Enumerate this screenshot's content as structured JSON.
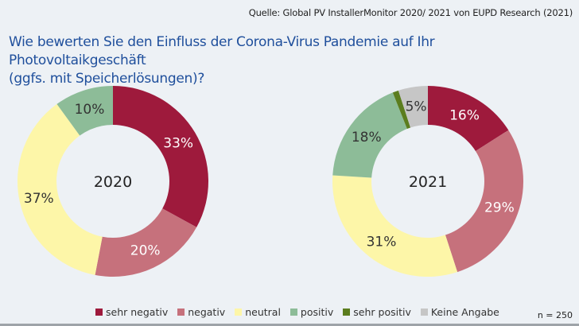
{
  "source": "Quelle: Global PV InstallerMonitor 2020/ 2021 von EUPD Research (2021)",
  "title_line1": "Wie bewerten Sie den Einfluss der Corona-Virus Pandemie auf Ihr Photovoltaikgeschäft",
  "title_line2": "(ggfs. mit Speicherlösungen)?",
  "sample_size": "n = 250",
  "chart_data": [
    {
      "type": "pie",
      "donut": true,
      "center_label": "2020",
      "categories": [
        "sehr negativ",
        "negativ",
        "neutral",
        "positiv"
      ],
      "values": [
        33,
        20,
        37,
        10
      ],
      "labels": [
        "33%",
        "20%",
        "37%",
        "10%"
      ],
      "colors": [
        "#9e1a3c",
        "#c6717c",
        "#fdf6a8",
        "#8dbc98"
      ],
      "label_colors": [
        "#ffffff",
        "#ffffff",
        "#333333",
        "#333333"
      ]
    },
    {
      "type": "pie",
      "donut": true,
      "center_label": "2021",
      "categories": [
        "sehr negativ",
        "negativ",
        "neutral",
        "positiv",
        "sehr positiv",
        "Keine Angabe"
      ],
      "values": [
        16,
        29,
        31,
        18,
        1,
        5
      ],
      "labels": [
        "16%",
        "29%",
        "31%",
        "18%",
        "",
        "5%"
      ],
      "colors": [
        "#9e1a3c",
        "#c6717c",
        "#fdf6a8",
        "#8dbc98",
        "#5b7d1e",
        "#c6c6c6"
      ],
      "label_colors": [
        "#ffffff",
        "#ffffff",
        "#333333",
        "#333333",
        "#333333",
        "#333333"
      ]
    }
  ],
  "legend": [
    {
      "label": "sehr negativ",
      "color": "#9e1a3c"
    },
    {
      "label": "negativ",
      "color": "#c6717c"
    },
    {
      "label": "neutral",
      "color": "#fdf6a8"
    },
    {
      "label": "positiv",
      "color": "#8dbc98"
    },
    {
      "label": "sehr positiv",
      "color": "#5b7d1e"
    },
    {
      "label": "Keine Angabe",
      "color": "#c6c6c6"
    }
  ]
}
